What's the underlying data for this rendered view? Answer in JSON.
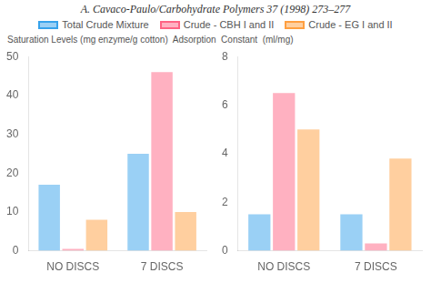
{
  "chart_data": [
    {
      "type": "bar",
      "title": "A. Cavaco-Paulo/Carbohydrate Polymers 37 (1998) 273–277",
      "annotation": "Saturation Levels (mg enzyme/g cotton)  Adsorption  Constant  (ml/mg)",
      "legend": "top",
      "categories": [
        "NO DISCS",
        "7 DISCS"
      ],
      "series": [
        {
          "name": "Total Crude Mixture",
          "values": [
            17,
            25
          ]
        },
        {
          "name": "Crude - CBH I and II",
          "values": [
            0.5,
            46
          ]
        },
        {
          "name": "Crude - EG I and II",
          "values": [
            8,
            10
          ]
        }
      ],
      "ylim": [
        0,
        50
      ],
      "yticks": [
        0,
        10,
        20,
        30,
        40,
        50
      ],
      "grid": false
    },
    {
      "type": "bar",
      "categories": [
        "NO DISCS",
        "7 DISCS"
      ],
      "series": [
        {
          "name": "Total Crude Mixture",
          "values": [
            1.5,
            1.5
          ]
        },
        {
          "name": "Crude - CBH I and II",
          "values": [
            6.5,
            0.3
          ]
        },
        {
          "name": "Crude - EG I and II",
          "values": [
            5.0,
            3.8
          ]
        }
      ],
      "ylim": [
        0,
        8
      ],
      "yticks": [
        0,
        2,
        4,
        6,
        8
      ],
      "grid": false
    }
  ]
}
